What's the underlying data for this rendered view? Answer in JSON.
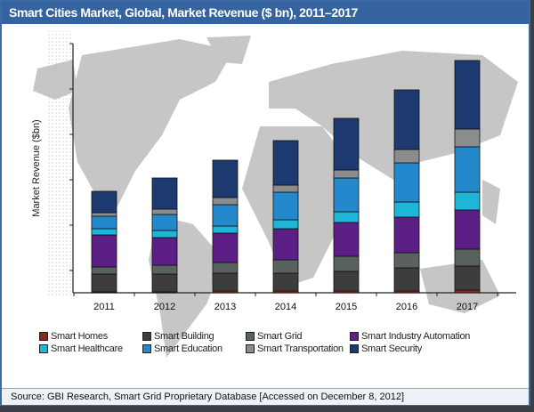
{
  "chart_data": {
    "type": "bar",
    "stacked": true,
    "title": "Smart Cities Market, Global, Market Revenue ($ bn), 2011–2017",
    "xlabel": "",
    "ylabel": "Market Revenue ($bn)",
    "ylim": [
      0,
      28
    ],
    "categories": [
      "2011",
      "2012",
      "2013",
      "2014",
      "2015",
      "2016",
      "2017"
    ],
    "series": [
      {
        "name": "Smart Homes",
        "color": "#8b2a14",
        "values": [
          0.1,
          0.1,
          0.2,
          0.2,
          0.2,
          0.2,
          0.3
        ]
      },
      {
        "name": "Smart Building",
        "color": "#3d3d3d",
        "values": [
          2.0,
          2.0,
          2.0,
          2.0,
          2.2,
          2.6,
          2.7
        ]
      },
      {
        "name": "Smart Grid",
        "color": "#5a6260",
        "values": [
          0.8,
          1.0,
          1.2,
          1.5,
          1.7,
          1.7,
          1.9
        ]
      },
      {
        "name": "Smart Industry Automation",
        "color": "#5b1f86",
        "values": [
          3.6,
          3.1,
          3.3,
          3.5,
          3.8,
          4.0,
          4.4
        ]
      },
      {
        "name": "Smart Healthcare",
        "color": "#1fb5d6",
        "values": [
          0.7,
          0.8,
          0.8,
          1.0,
          1.2,
          1.7,
          2.0
        ]
      },
      {
        "name": "Smart Education",
        "color": "#2389cc",
        "values": [
          1.4,
          1.8,
          2.4,
          3.1,
          3.8,
          4.4,
          5.1
        ]
      },
      {
        "name": "Smart Transportation",
        "color": "#8a8c8e",
        "values": [
          0.4,
          0.6,
          0.8,
          0.8,
          0.9,
          1.5,
          2.0
        ]
      },
      {
        "name": "Smart Security",
        "color": "#1c3a70",
        "values": [
          2.4,
          3.5,
          4.2,
          5.0,
          5.8,
          6.7,
          7.7
        ]
      }
    ],
    "legend": "bottom",
    "grid": false
  },
  "source": "Source: GBI Research, Smart Grid Proprietary Database [Accessed on December 8, 2012]"
}
